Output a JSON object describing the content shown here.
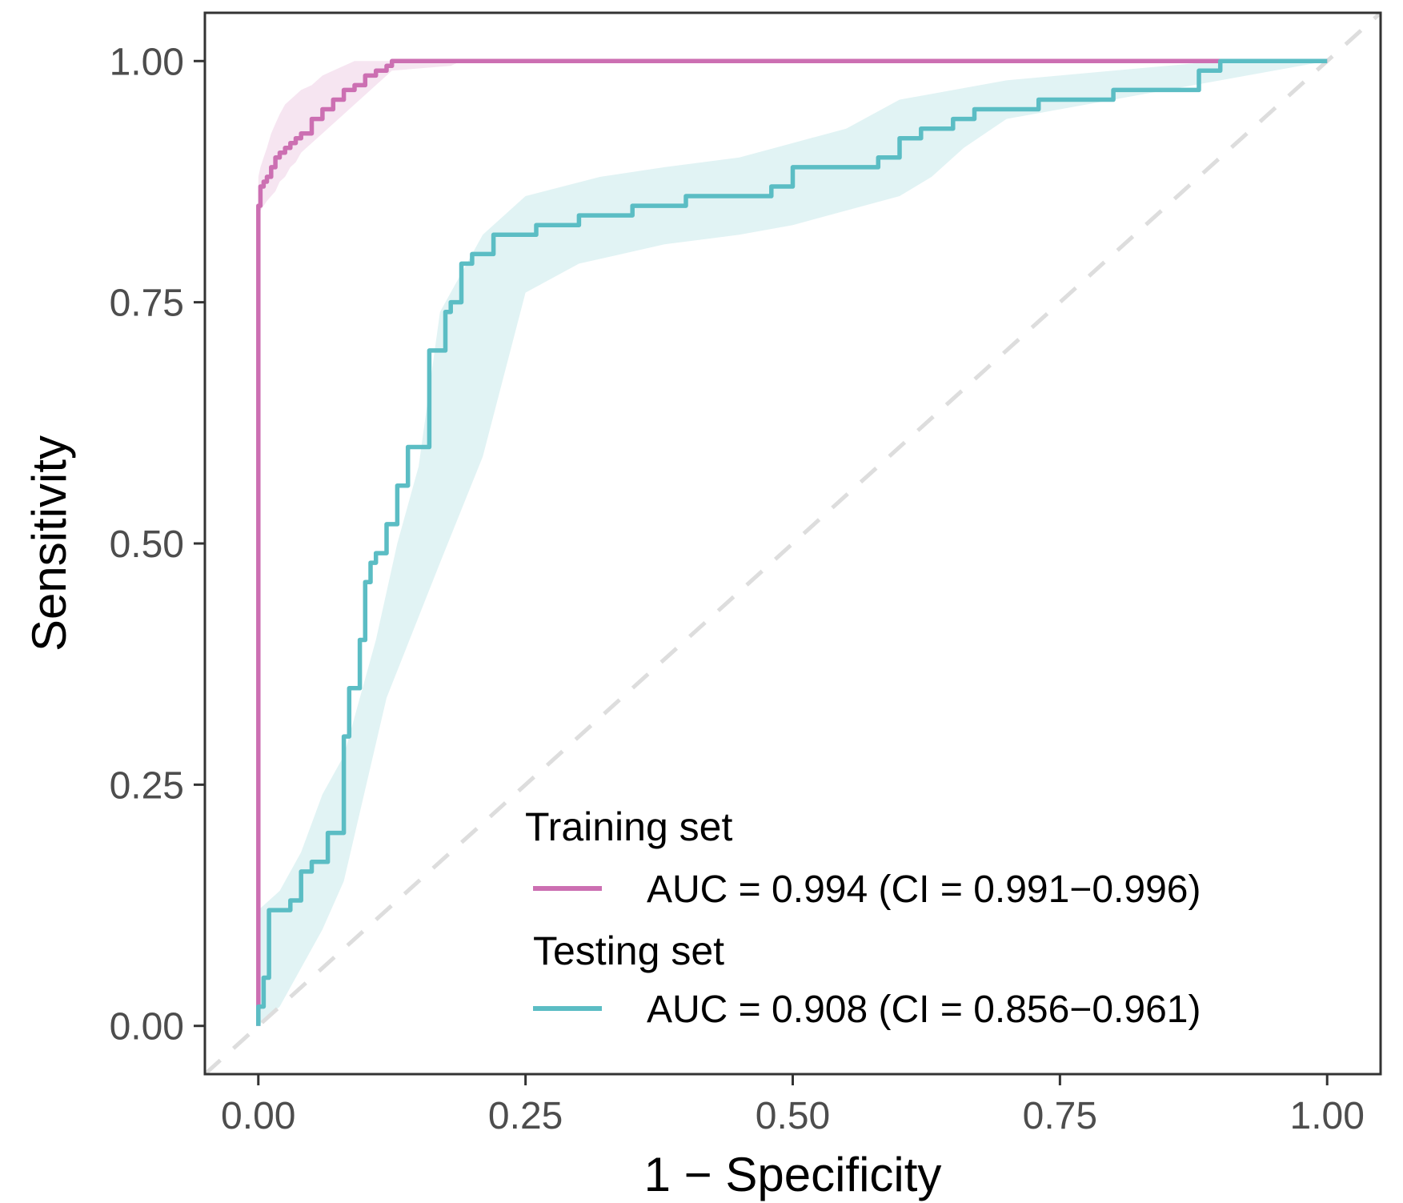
{
  "chart_data": {
    "type": "line",
    "xlabel": "1 − Specificity",
    "ylabel": "Sensitivity",
    "xlim": [
      -0.05,
      1.05
    ],
    "ylim": [
      -0.05,
      1.05
    ],
    "x_ticks": [
      "0.00",
      "0.25",
      "0.50",
      "0.75",
      "1.00"
    ],
    "y_ticks": [
      "0.00",
      "0.25",
      "0.50",
      "0.75",
      "1.00"
    ],
    "grid": false,
    "diagonal_reference": true,
    "legend": {
      "position": "bottom-right"
    },
    "series": [
      {
        "name": "Training set",
        "label": "AUC = 0.994 (CI = 0.991−0.996)",
        "color": "#cc6fb2",
        "x": [
          0.0,
          0.0,
          0.002,
          0.005,
          0.008,
          0.012,
          0.016,
          0.02,
          0.025,
          0.03,
          0.035,
          0.04,
          0.05,
          0.06,
          0.07,
          0.08,
          0.09,
          0.1,
          0.11,
          0.12,
          0.125,
          0.18,
          0.19,
          1.0
        ],
        "y": [
          0.0,
          0.85,
          0.87,
          0.875,
          0.88,
          0.89,
          0.9,
          0.905,
          0.91,
          0.915,
          0.92,
          0.925,
          0.94,
          0.95,
          0.96,
          0.97,
          0.975,
          0.985,
          0.99,
          0.995,
          1.0,
          1.0,
          1.0,
          1.0
        ],
        "ci_upper": [
          0.02,
          0.88,
          0.89,
          0.9,
          0.91,
          0.925,
          0.935,
          0.945,
          0.955,
          0.96,
          0.965,
          0.97,
          0.975,
          0.985,
          0.99,
          0.995,
          1.0,
          1.0,
          1.0,
          1.0,
          1.0,
          1.0,
          1.0,
          1.0
        ],
        "ci_lower": [
          0.0,
          0.83,
          0.845,
          0.85,
          0.855,
          0.86,
          0.865,
          0.875,
          0.88,
          0.89,
          0.895,
          0.905,
          0.915,
          0.925,
          0.935,
          0.945,
          0.955,
          0.965,
          0.975,
          0.985,
          0.99,
          0.995,
          1.0,
          1.0
        ]
      },
      {
        "name": "Testing set",
        "label": "AUC = 0.908 (CI = 0.856−0.961)",
        "color": "#5bbdc4",
        "x": [
          0.0,
          0.0,
          0.005,
          0.01,
          0.01,
          0.02,
          0.03,
          0.04,
          0.05,
          0.06,
          0.065,
          0.08,
          0.085,
          0.095,
          0.1,
          0.105,
          0.11,
          0.12,
          0.13,
          0.14,
          0.16,
          0.175,
          0.18,
          0.19,
          0.2,
          0.22,
          0.26,
          0.3,
          0.35,
          0.4,
          0.48,
          0.5,
          0.55,
          0.58,
          0.6,
          0.62,
          0.65,
          0.67,
          0.7,
          0.73,
          0.8,
          0.88,
          0.9,
          1.0
        ],
        "y": [
          0.0,
          0.02,
          0.05,
          0.05,
          0.12,
          0.12,
          0.13,
          0.16,
          0.17,
          0.17,
          0.2,
          0.3,
          0.35,
          0.4,
          0.46,
          0.48,
          0.49,
          0.52,
          0.56,
          0.6,
          0.7,
          0.74,
          0.75,
          0.79,
          0.8,
          0.82,
          0.83,
          0.84,
          0.85,
          0.86,
          0.87,
          0.89,
          0.89,
          0.9,
          0.92,
          0.93,
          0.94,
          0.95,
          0.95,
          0.96,
          0.97,
          0.99,
          1.0,
          1.0
        ],
        "ci_upper": [
          0.12,
          0.14,
          0.18,
          0.24,
          0.28,
          0.4,
          0.5,
          0.58,
          0.74,
          0.82,
          0.86,
          0.88,
          0.89,
          0.9,
          0.915,
          0.93,
          0.96,
          0.98,
          0.99,
          1.0,
          1.0
        ],
        "ci_upper_x": [
          0.0,
          0.02,
          0.04,
          0.06,
          0.08,
          0.11,
          0.13,
          0.15,
          0.17,
          0.21,
          0.25,
          0.32,
          0.38,
          0.45,
          0.5,
          0.55,
          0.6,
          0.7,
          0.8,
          0.9,
          1.0
        ],
        "ci_lower": [
          0.0,
          0.02,
          0.06,
          0.1,
          0.15,
          0.34,
          0.48,
          0.59,
          0.76,
          0.79,
          0.81,
          0.82,
          0.83,
          0.86,
          0.88,
          0.91,
          0.94,
          0.96,
          0.98,
          1.0
        ],
        "ci_lower_x": [
          0.0,
          0.02,
          0.04,
          0.06,
          0.08,
          0.12,
          0.17,
          0.21,
          0.25,
          0.3,
          0.38,
          0.45,
          0.5,
          0.6,
          0.63,
          0.66,
          0.7,
          0.8,
          0.9,
          1.0
        ]
      }
    ]
  },
  "colors": {
    "diagonal": "#dddddd",
    "axis": "#333333",
    "panel_border": "#333333"
  }
}
